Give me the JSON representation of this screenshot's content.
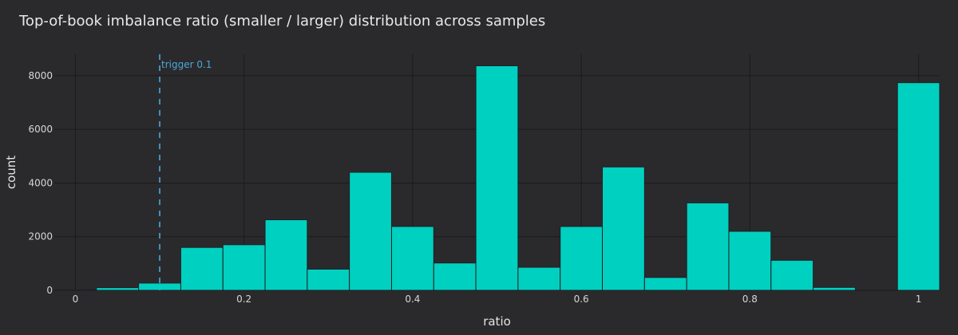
{
  "chart_data": {
    "type": "bar",
    "title": "Top-of-book imbalance ratio (smaller / larger) distribution across samples",
    "xlabel": "ratio",
    "ylabel": "count",
    "xlim": [
      -0.025,
      1.025
    ],
    "ylim": [
      0,
      8800
    ],
    "x_ticks": [
      0,
      0.2,
      0.4,
      0.6,
      0.8,
      1
    ],
    "x_tick_labels": [
      "0",
      "0.2",
      "0.4",
      "0.6",
      "0.8",
      "1"
    ],
    "y_ticks": [
      0,
      2000,
      4000,
      6000,
      8000
    ],
    "y_tick_labels": [
      "0",
      "2000",
      "4000",
      "6000",
      "8000"
    ],
    "grid": true,
    "bin_width": 0.05,
    "bins": [
      {
        "x0": -0.025,
        "x1": 0.025,
        "value": 20
      },
      {
        "x0": 0.025,
        "x1": 0.075,
        "value": 100
      },
      {
        "x0": 0.075,
        "x1": 0.125,
        "value": 270
      },
      {
        "x0": 0.125,
        "x1": 0.175,
        "value": 1600
      },
      {
        "x0": 0.175,
        "x1": 0.225,
        "value": 1700
      },
      {
        "x0": 0.225,
        "x1": 0.275,
        "value": 2630
      },
      {
        "x0": 0.275,
        "x1": 0.325,
        "value": 790
      },
      {
        "x0": 0.325,
        "x1": 0.375,
        "value": 4400
      },
      {
        "x0": 0.375,
        "x1": 0.425,
        "value": 2380
      },
      {
        "x0": 0.425,
        "x1": 0.475,
        "value": 1020
      },
      {
        "x0": 0.475,
        "x1": 0.525,
        "value": 8370
      },
      {
        "x0": 0.525,
        "x1": 0.575,
        "value": 860
      },
      {
        "x0": 0.575,
        "x1": 0.625,
        "value": 2380
      },
      {
        "x0": 0.625,
        "x1": 0.675,
        "value": 4600
      },
      {
        "x0": 0.675,
        "x1": 0.725,
        "value": 480
      },
      {
        "x0": 0.725,
        "x1": 0.775,
        "value": 3260
      },
      {
        "x0": 0.775,
        "x1": 0.825,
        "value": 2200
      },
      {
        "x0": 0.825,
        "x1": 0.875,
        "value": 1120
      },
      {
        "x0": 0.875,
        "x1": 0.925,
        "value": 110
      },
      {
        "x0": 0.925,
        "x1": 0.975,
        "value": 0
      },
      {
        "x0": 0.975,
        "x1": 1.025,
        "value": 7740
      }
    ],
    "threshold": {
      "x": 0.1,
      "label": "trigger 0.1"
    },
    "colors": {
      "bar": "#00d0c0",
      "bar_edge": "#1f1f22",
      "threshold": "#4aa8d8",
      "grid": "#1b1b1d"
    }
  }
}
